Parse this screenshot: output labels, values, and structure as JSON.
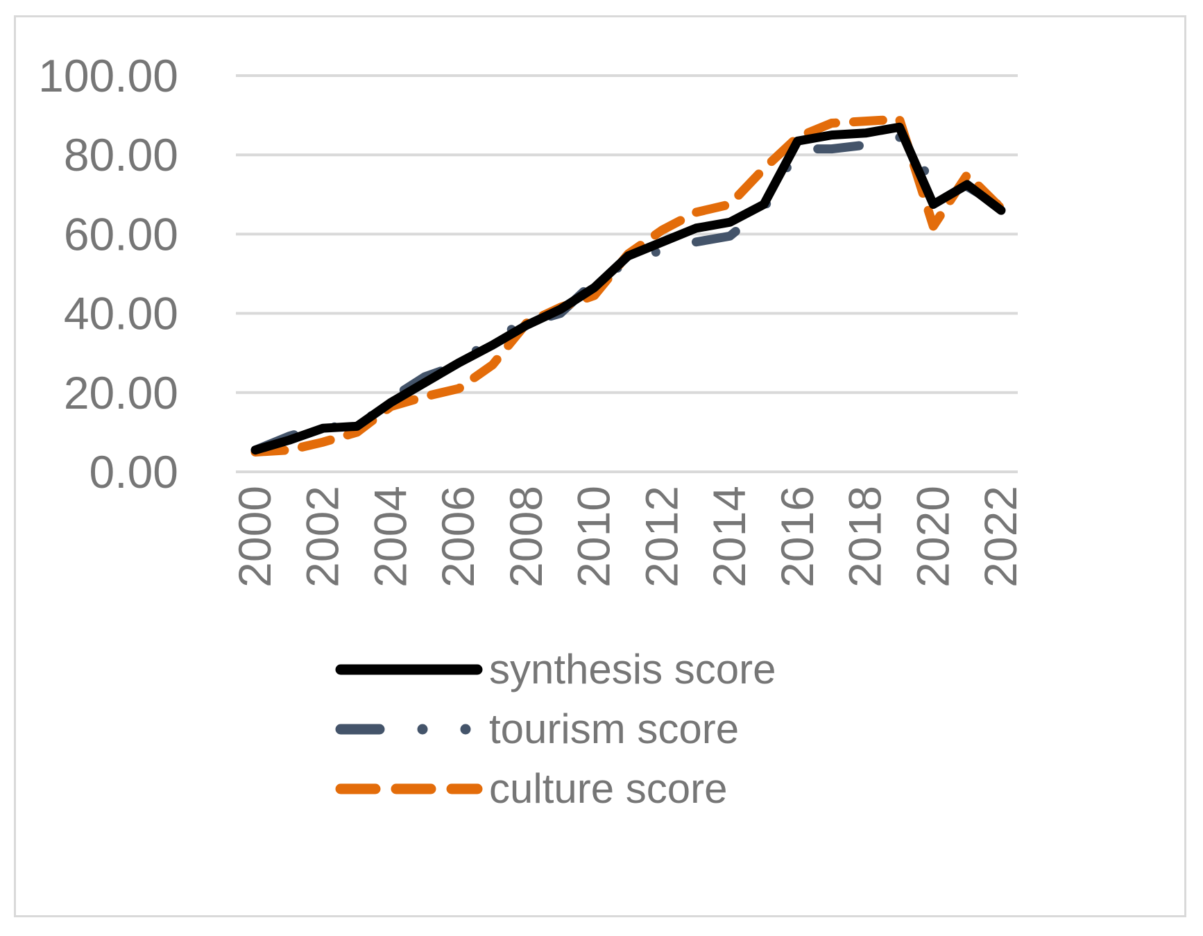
{
  "chart_data": {
    "type": "line",
    "title": "",
    "xlabel": "",
    "ylabel": "",
    "ylim": [
      0,
      100
    ],
    "y_ticks": [
      "0.00",
      "20.00",
      "40.00",
      "60.00",
      "80.00",
      "100.00"
    ],
    "x_tick_labels": [
      "2000",
      "2002",
      "2004",
      "2006",
      "2008",
      "2010",
      "2012",
      "2014",
      "2016",
      "2018",
      "2020",
      "2022"
    ],
    "x": [
      2000,
      2001,
      2002,
      2003,
      2004,
      2005,
      2006,
      2007,
      2008,
      2009,
      2010,
      2011,
      2012,
      2013,
      2014,
      2015,
      2016,
      2017,
      2018,
      2019,
      2020,
      2021,
      2022
    ],
    "grid": true,
    "legend_position": "bottom",
    "series": [
      {
        "name": "synthesis score",
        "color": "#000000",
        "style": "solid",
        "values": [
          5.5,
          8.0,
          11.0,
          11.5,
          17.5,
          22.5,
          27.5,
          32.0,
          37.0,
          41.0,
          46.5,
          54.5,
          58.0,
          61.5,
          63.0,
          67.5,
          83.5,
          85.0,
          85.5,
          87.0,
          67.5,
          72.5,
          66.0
        ]
      },
      {
        "name": "tourism score",
        "color": "#44546a",
        "style": "long-dash-dot-dot",
        "values": [
          5.5,
          9.0,
          11.5,
          11.0,
          18.5,
          24.0,
          27.0,
          34.0,
          37.5,
          40.0,
          48.0,
          53.0,
          56.0,
          58.0,
          59.5,
          66.5,
          81.5,
          81.5,
          82.5,
          84.5,
          73.0,
          72.0,
          67.0
        ]
      },
      {
        "name": "culture score",
        "color": "#e36c0a",
        "style": "dash",
        "values": [
          5.0,
          5.5,
          7.5,
          10.0,
          16.5,
          19.0,
          21.0,
          27.0,
          37.5,
          41.5,
          44.5,
          55.0,
          61.0,
          65.5,
          67.5,
          76.5,
          84.5,
          88.0,
          88.5,
          89.0,
          62.0,
          75.0,
          66.5
        ]
      }
    ]
  }
}
